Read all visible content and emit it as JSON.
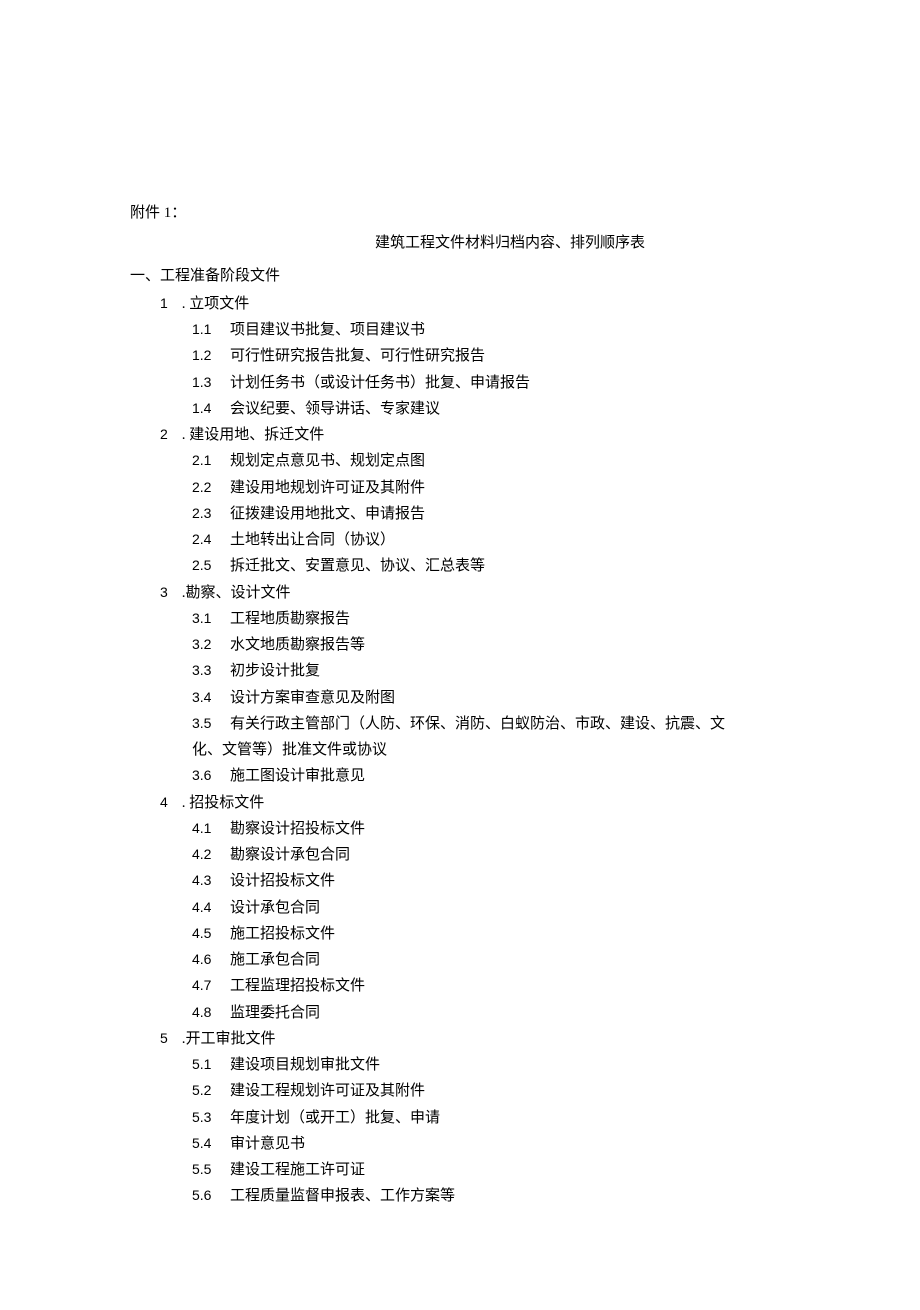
{
  "attachment_label": "附件 1：",
  "title": "建筑工程文件材料归档内容、排列顺序表",
  "section_heading": "一、工程准备阶段文件",
  "sections": [
    {
      "num": "1",
      "suffix": " . ",
      "title": "立项文件",
      "items": [
        {
          "num": "1.1",
          "text": "项目建议书批复、项目建议书"
        },
        {
          "num": "1.2",
          "text": "可行性研究报告批复、可行性研究报告"
        },
        {
          "num": "1.3",
          "text": "计划任务书（或设计任务书）批复、申请报告"
        },
        {
          "num": "1.4",
          "text": "会议纪要、领导讲话、专家建议"
        }
      ]
    },
    {
      "num": "2",
      "suffix": " . ",
      "title": "建设用地、拆迁文件",
      "items": [
        {
          "num": "2.1",
          "text": "规划定点意见书、规划定点图"
        },
        {
          "num": "2.2",
          "text": "建设用地规划许可证及其附件"
        },
        {
          "num": "2.3",
          "text": "征拨建设用地批文、申请报告"
        },
        {
          "num": "2.4",
          "text": "土地转出让合同（协议）"
        },
        {
          "num": "2.5",
          "text": "拆迁批文、安置意见、协议、汇总表等"
        }
      ]
    },
    {
      "num": "3",
      "suffix": " .",
      "title": "勘察、设计文件",
      "items": [
        {
          "num": "3.1",
          "text": "工程地质勘察报告"
        },
        {
          "num": "3.2",
          "text": "水文地质勘察报告等"
        },
        {
          "num": "3.3",
          "text": "初步设计批复"
        },
        {
          "num": "3.4",
          "text": "设计方案审查意见及附图"
        },
        {
          "num": "3.5",
          "text": "有关行政主管部门（人防、环保、消防、白蚁防治、市政、建设、抗震、文",
          "continuation": "化、文管等）批准文件或协议"
        },
        {
          "num": "3.6",
          "text": "施工图设计审批意见"
        }
      ]
    },
    {
      "num": "4",
      "suffix": " . ",
      "title": "招投标文件",
      "items": [
        {
          "num": "4.1",
          "text": "勘察设计招投标文件"
        },
        {
          "num": "4.2",
          "text": "勘察设计承包合同"
        },
        {
          "num": "4.3",
          "text": "设计招投标文件"
        },
        {
          "num": "4.4",
          "text": "设计承包合同"
        },
        {
          "num": "4.5",
          "text": "施工招投标文件"
        },
        {
          "num": "4.6",
          "text": "施工承包合同"
        },
        {
          "num": "4.7",
          "text": "工程监理招投标文件"
        },
        {
          "num": "4.8",
          "text": "监理委托合同"
        }
      ]
    },
    {
      "num": "5",
      "suffix": " .",
      "title": "开工审批文件",
      "items": [
        {
          "num": "5.1",
          "text": "建设项目规划审批文件"
        },
        {
          "num": "5.2",
          "text": "建设工程规划许可证及其附件"
        },
        {
          "num": "5.3",
          "text": "年度计划（或开工）批复、申请"
        },
        {
          "num": "5.4",
          "text": "审计意见书"
        },
        {
          "num": "5.5",
          "text": "建设工程施工许可证"
        },
        {
          "num": "5.6",
          "text": "工程质量监督申报表、工作方案等"
        }
      ]
    }
  ]
}
